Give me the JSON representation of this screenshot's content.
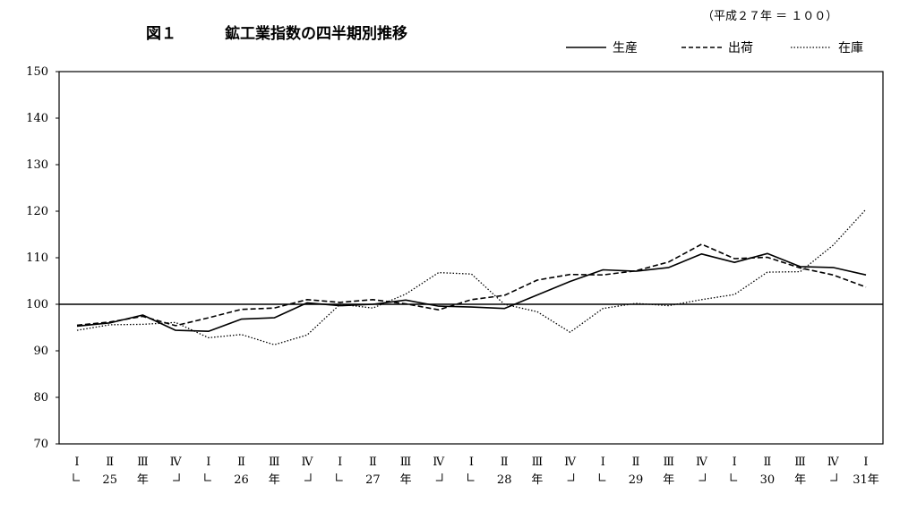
{
  "chart_data": {
    "type": "line",
    "figure_label": "図１",
    "title": "鉱工業指数の四半期別推移",
    "base_note": "（平成２７年 ＝ １００）",
    "ylim": [
      70,
      150
    ],
    "yticks": [
      70,
      80,
      90,
      100,
      110,
      120,
      130,
      140,
      150
    ],
    "reference_line": 100,
    "grid": false,
    "legend_position": "top-right",
    "categories": [
      "Ⅰ",
      "Ⅱ",
      "Ⅲ",
      "Ⅳ",
      "Ⅰ",
      "Ⅱ",
      "Ⅲ",
      "Ⅳ",
      "Ⅰ",
      "Ⅱ",
      "Ⅲ",
      "Ⅳ",
      "Ⅰ",
      "Ⅱ",
      "Ⅲ",
      "Ⅳ",
      "Ⅰ",
      "Ⅱ",
      "Ⅲ",
      "Ⅳ",
      "Ⅰ",
      "Ⅱ",
      "Ⅲ",
      "Ⅳ",
      "Ⅰ"
    ],
    "year_groups": [
      {
        "label": "25",
        "suffix": "年"
      },
      {
        "label": "26",
        "suffix": "年"
      },
      {
        "label": "27",
        "suffix": "年"
      },
      {
        "label": "28",
        "suffix": "年"
      },
      {
        "label": "29",
        "suffix": "年"
      },
      {
        "label": "30",
        "suffix": "年"
      }
    ],
    "last_year_label": "31年",
    "series": [
      {
        "name": "生産",
        "style": "solid",
        "values": [
          95.3,
          96.0,
          97.7,
          94.4,
          94.2,
          96.8,
          97.1,
          100.3,
          99.7,
          100.0,
          100.9,
          99.6,
          99.4,
          99.1,
          102.0,
          104.9,
          107.4,
          107.1,
          107.9,
          110.8,
          109.0,
          110.9,
          108.1,
          107.9,
          106.3
        ]
      },
      {
        "name": "出荷",
        "style": "dashed",
        "values": [
          95.5,
          96.2,
          97.4,
          95.4,
          97.1,
          98.9,
          99.2,
          101.0,
          100.4,
          101.0,
          100.1,
          98.8,
          101.0,
          101.9,
          105.2,
          106.4,
          106.3,
          107.2,
          109.1,
          112.9,
          109.8,
          110.1,
          107.8,
          106.3,
          103.7
        ]
      },
      {
        "name": "在庫",
        "style": "dotted",
        "values": [
          94.4,
          95.6,
          95.7,
          96.1,
          92.8,
          93.5,
          91.3,
          93.4,
          100.0,
          99.2,
          102.2,
          106.8,
          106.5,
          100.0,
          98.4,
          94.0,
          99.1,
          100.2,
          99.7,
          101.0,
          102.1,
          106.9,
          107.0,
          112.7,
          120.4
        ]
      }
    ]
  }
}
